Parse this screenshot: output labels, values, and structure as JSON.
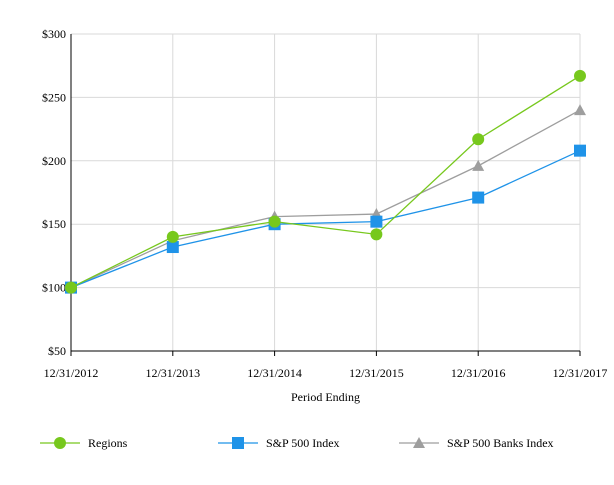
{
  "chart_data": {
    "type": "line",
    "title": "",
    "xlabel": "Period Ending",
    "ylabel": "",
    "categories": [
      "12/31/2012",
      "12/31/2013",
      "12/31/2014",
      "12/31/2015",
      "12/31/2016",
      "12/31/2017"
    ],
    "y_tick_values": [
      50,
      100,
      150,
      200,
      250,
      300
    ],
    "y_tick_labels": [
      "$50",
      "$100",
      "$150",
      "$200",
      "$250",
      "$300"
    ],
    "ylim": [
      50,
      300
    ],
    "grid": true,
    "legend_position": "bottom",
    "series": [
      {
        "name": "Regions",
        "marker": "circle",
        "color": "#77c81d",
        "values": [
          100,
          140,
          152,
          142,
          217,
          267
        ]
      },
      {
        "name": "S&P 500 Index",
        "marker": "square",
        "color": "#1f93e8",
        "values": [
          100,
          132,
          150,
          152,
          171,
          208
        ]
      },
      {
        "name": "S&P 500 Banks Index",
        "marker": "triangle",
        "color": "#9e9e9e",
        "values": [
          100,
          137,
          156,
          158,
          196,
          240
        ]
      }
    ]
  }
}
